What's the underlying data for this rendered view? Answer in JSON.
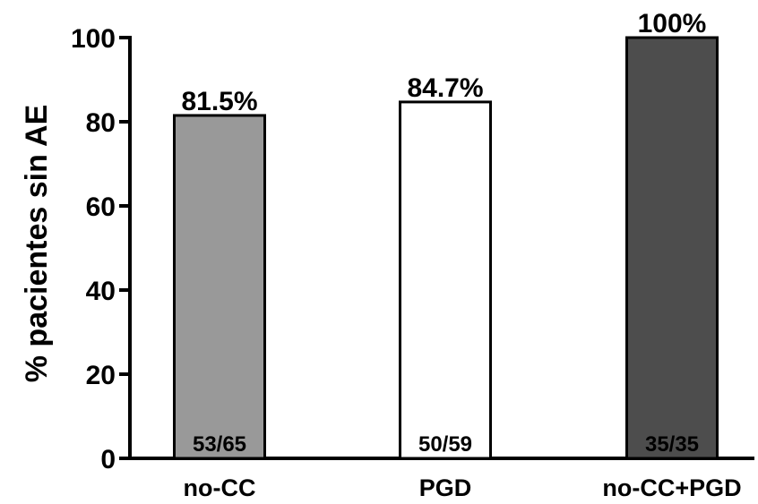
{
  "chart_data": {
    "type": "bar",
    "title": "",
    "xlabel": "",
    "ylabel": "% pacientes sin AE",
    "ylim": [
      0,
      100
    ],
    "yticks": [
      0,
      20,
      40,
      60,
      80,
      100
    ],
    "categories": [
      "no-CC",
      "PGD",
      "no-CC+PGD"
    ],
    "values": [
      81.5,
      84.7,
      100
    ],
    "value_labels": [
      "81.5%",
      "84.7%",
      "100%"
    ],
    "count_labels": [
      "53/65",
      "50/59",
      "35/35"
    ],
    "colors": [
      "#999999",
      "#ffffff",
      "#4d4d4d"
    ],
    "grid": false,
    "legend": "none"
  }
}
